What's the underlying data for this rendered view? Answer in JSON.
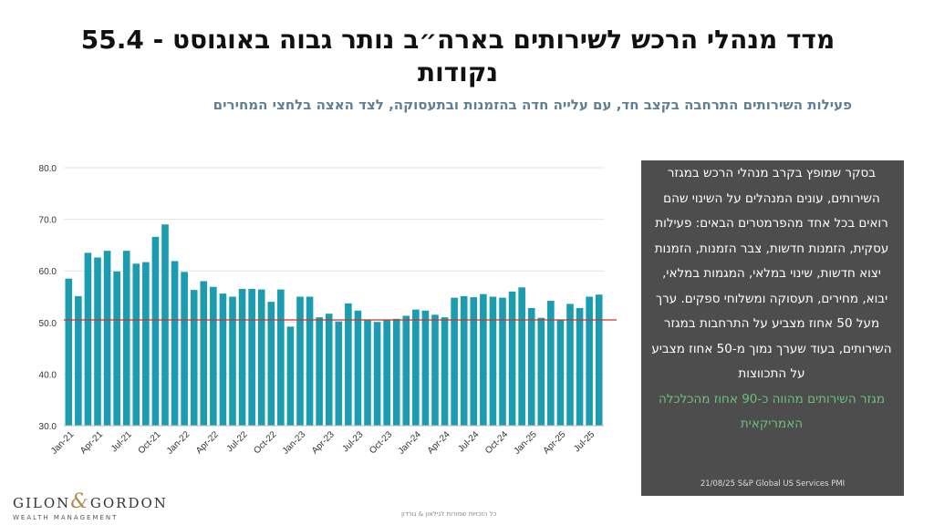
{
  "title": "מדד מנהלי הרכש לשירותים בארה״ב נותר גבוה באוגוסט - 55.4 נקודות",
  "subtitle": "פעילות השירותים התרחבה בקצב חד, עם עלייה חדה בהזמנות ובתעסוקה, לצד האצה בלחצי המחירים",
  "panel": {
    "text": "בסקר שמופץ בקרב מנהלי הרכש במגזר השירותים, עונים המנהלים על השינוי שהם רואים בכל אחד מהפרמטרים הבאים: פעילות עסקית, הזמנות חדשות, צבר הזמנות, הזמנות יצוא חדשות, שינוי במלאי, המגמות במלאי, יבוא, מחירים, תעסוקה ומשלוחי ספקים. ערך מעל 50 אחוז מצביע על התרחבות במגזר השירותים, בעוד שערך נמוך מ-50 אחוז מצביע על התכווצות",
    "highlight": "מגזר השירותים מהווה כ-90 אחוז מהכלכלה האמריקאית",
    "source": "21/08/25 S&P Global US Services PMI"
  },
  "logo": {
    "name_left": "GILON",
    "amp": "&",
    "name_right": "GORDON",
    "sub": "WEALTH MANAGEMENT"
  },
  "footer": "כל הזכויות שמורות לגילאון & גורדון",
  "colors": {
    "bar": "#1b9cb0",
    "reference_line": "#c0392b",
    "panel_bg": "#4d4d4d",
    "highlight": "#6dc07d"
  },
  "chart_data": {
    "type": "bar",
    "ylim": [
      30,
      80
    ],
    "yticks": [
      "30.0",
      "40.0",
      "50.0",
      "60.0",
      "70.0",
      "80.0"
    ],
    "grid": true,
    "reference_line": 50.5,
    "tick_every": 3,
    "categories": [
      "Jan-21",
      "Feb-21",
      "Mar-21",
      "Apr-21",
      "May-21",
      "Jun-21",
      "Jul-21",
      "Aug-21",
      "Sep-21",
      "Oct-21",
      "Nov-21",
      "Dec-21",
      "Jan-22",
      "Feb-22",
      "Mar-22",
      "Apr-22",
      "May-22",
      "Jun-22",
      "Jul-22",
      "Aug-22",
      "Sep-22",
      "Oct-22",
      "Nov-22",
      "Dec-22",
      "Jan-23",
      "Feb-23",
      "Mar-23",
      "Apr-23",
      "May-23",
      "Jun-23",
      "Jul-23",
      "Aug-23",
      "Sep-23",
      "Oct-23",
      "Nov-23",
      "Dec-23",
      "Jan-24",
      "Feb-24",
      "Mar-24",
      "Apr-24",
      "May-24",
      "Jun-24",
      "Jul-24",
      "Aug-24",
      "Sep-24",
      "Oct-24",
      "Nov-24",
      "Dec-24",
      "Jan-25",
      "Feb-25",
      "Mar-25",
      "Apr-25",
      "May-25",
      "Jun-25",
      "Jul-25",
      "Aug-25"
    ],
    "values": [
      58.5,
      55.1,
      63.5,
      62.6,
      63.9,
      59.9,
      63.9,
      61.4,
      61.7,
      66.6,
      69.0,
      61.9,
      59.8,
      56.3,
      58.0,
      56.9,
      55.6,
      55.0,
      56.5,
      56.5,
      56.4,
      54.0,
      56.4,
      49.2,
      55.0,
      55.0,
      51.0,
      51.7,
      50.2,
      53.7,
      52.3,
      50.5,
      50.1,
      50.5,
      50.7,
      51.3,
      52.5,
      52.3,
      51.5,
      51.0,
      54.8,
      55.1,
      54.9,
      55.5,
      55.0,
      54.8,
      56.0,
      56.8,
      52.8,
      50.9,
      54.2,
      50.5,
      53.6,
      52.8,
      55.0,
      55.4
    ]
  }
}
